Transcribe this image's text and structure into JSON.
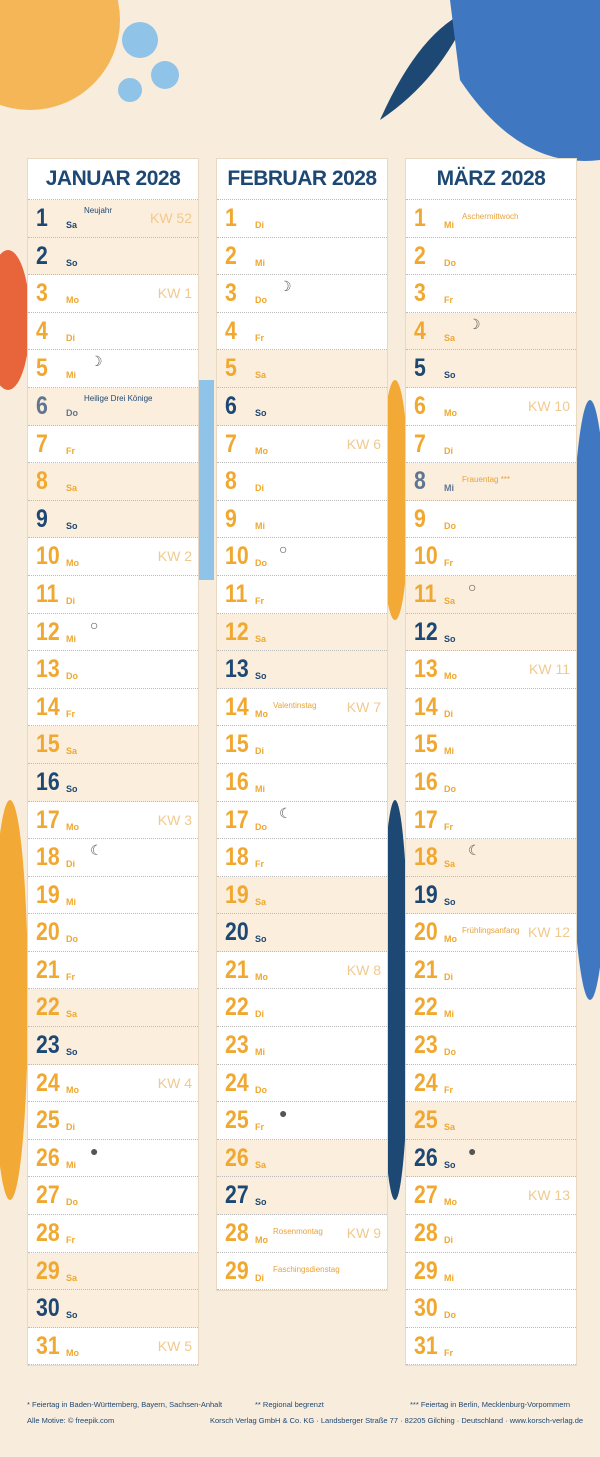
{
  "months": [
    {
      "title": "JANUAR 2028",
      "days": [
        {
          "day": 1,
          "weekday": "Sa",
          "note": "Neujahr",
          "kw": "KW 52",
          "color": "#1d4873"
        },
        {
          "day": 2,
          "weekday": "So"
        },
        {
          "day": 3,
          "weekday": "Mo",
          "kw": "KW 1"
        },
        {
          "day": 4,
          "weekday": "Di"
        },
        {
          "day": 5,
          "weekday": "Mi",
          "moon": "☽"
        },
        {
          "day": 6,
          "weekday": "Do",
          "note": "Heilige Drei Könige",
          "color": "#5f7590"
        },
        {
          "day": 7,
          "weekday": "Fr"
        },
        {
          "day": 8,
          "weekday": "Sa"
        },
        {
          "day": 9,
          "weekday": "So"
        },
        {
          "day": 10,
          "weekday": "Mo",
          "kw": "KW 2"
        },
        {
          "day": 11,
          "weekday": "Di"
        },
        {
          "day": 12,
          "weekday": "Mi",
          "moon": "○"
        },
        {
          "day": 13,
          "weekday": "Do"
        },
        {
          "day": 14,
          "weekday": "Fr"
        },
        {
          "day": 15,
          "weekday": "Sa"
        },
        {
          "day": 16,
          "weekday": "So"
        },
        {
          "day": 17,
          "weekday": "Mo",
          "kw": "KW 3"
        },
        {
          "day": 18,
          "weekday": "Di",
          "moon": "☾"
        },
        {
          "day": 19,
          "weekday": "Mi"
        },
        {
          "day": 20,
          "weekday": "Do"
        },
        {
          "day": 21,
          "weekday": "Fr"
        },
        {
          "day": 22,
          "weekday": "Sa"
        },
        {
          "day": 23,
          "weekday": "So"
        },
        {
          "day": 24,
          "weekday": "Mo",
          "kw": "KW 4"
        },
        {
          "day": 25,
          "weekday": "Di"
        },
        {
          "day": 26,
          "weekday": "Mi",
          "moon": "●"
        },
        {
          "day": 27,
          "weekday": "Do"
        },
        {
          "day": 28,
          "weekday": "Fr"
        },
        {
          "day": 29,
          "weekday": "Sa"
        },
        {
          "day": 30,
          "weekday": "So"
        },
        {
          "day": 31,
          "weekday": "Mo",
          "kw": "KW 5"
        }
      ]
    },
    {
      "title": "FEBRUAR 2028",
      "days": [
        {
          "day": 1,
          "weekday": "Di"
        },
        {
          "day": 2,
          "weekday": "Mi"
        },
        {
          "day": 3,
          "weekday": "Do",
          "moon": "☽"
        },
        {
          "day": 4,
          "weekday": "Fr"
        },
        {
          "day": 5,
          "weekday": "Sa"
        },
        {
          "day": 6,
          "weekday": "So"
        },
        {
          "day": 7,
          "weekday": "Mo",
          "kw": "KW 6"
        },
        {
          "day": 8,
          "weekday": "Di"
        },
        {
          "day": 9,
          "weekday": "Mi"
        },
        {
          "day": 10,
          "weekday": "Do",
          "moon": "○"
        },
        {
          "day": 11,
          "weekday": "Fr"
        },
        {
          "day": 12,
          "weekday": "Sa"
        },
        {
          "day": 13,
          "weekday": "So"
        },
        {
          "day": 14,
          "weekday": "Mo",
          "note": "Valentinstag",
          "kw": "KW 7"
        },
        {
          "day": 15,
          "weekday": "Di"
        },
        {
          "day": 16,
          "weekday": "Mi"
        },
        {
          "day": 17,
          "weekday": "Do",
          "moon": "☾"
        },
        {
          "day": 18,
          "weekday": "Fr"
        },
        {
          "day": 19,
          "weekday": "Sa"
        },
        {
          "day": 20,
          "weekday": "So"
        },
        {
          "day": 21,
          "weekday": "Mo",
          "kw": "KW 8"
        },
        {
          "day": 22,
          "weekday": "Di"
        },
        {
          "day": 23,
          "weekday": "Mi"
        },
        {
          "day": 24,
          "weekday": "Do"
        },
        {
          "day": 25,
          "weekday": "Fr",
          "moon": "●"
        },
        {
          "day": 26,
          "weekday": "Sa"
        },
        {
          "day": 27,
          "weekday": "So"
        },
        {
          "day": 28,
          "weekday": "Mo",
          "note": "Rosenmontag",
          "kw": "KW 9"
        },
        {
          "day": 29,
          "weekday": "Di",
          "note": "Faschingsdienstag"
        }
      ]
    },
    {
      "title": "MÄRZ 2028",
      "days": [
        {
          "day": 1,
          "weekday": "Mi",
          "note": "Aschermittwoch"
        },
        {
          "day": 2,
          "weekday": "Do"
        },
        {
          "day": 3,
          "weekday": "Fr"
        },
        {
          "day": 4,
          "weekday": "Sa",
          "moon": "☽"
        },
        {
          "day": 5,
          "weekday": "So"
        },
        {
          "day": 6,
          "weekday": "Mo",
          "kw": "KW 10"
        },
        {
          "day": 7,
          "weekday": "Di"
        },
        {
          "day": 8,
          "weekday": "Mi",
          "note": "Frauentag ***",
          "color": "#5f7590"
        },
        {
          "day": 9,
          "weekday": "Do"
        },
        {
          "day": 10,
          "weekday": "Fr"
        },
        {
          "day": 11,
          "weekday": "Sa",
          "moon": "○"
        },
        {
          "day": 12,
          "weekday": "So"
        },
        {
          "day": 13,
          "weekday": "Mo",
          "kw": "KW 11"
        },
        {
          "day": 14,
          "weekday": "Di"
        },
        {
          "day": 15,
          "weekday": "Mi"
        },
        {
          "day": 16,
          "weekday": "Do"
        },
        {
          "day": 17,
          "weekday": "Fr"
        },
        {
          "day": 18,
          "weekday": "Sa",
          "moon": "☾"
        },
        {
          "day": 19,
          "weekday": "So"
        },
        {
          "day": 20,
          "weekday": "Mo",
          "note": "Frühlingsanfang",
          "kw": "KW 12"
        },
        {
          "day": 21,
          "weekday": "Di"
        },
        {
          "day": 22,
          "weekday": "Mi"
        },
        {
          "day": 23,
          "weekday": "Do"
        },
        {
          "day": 24,
          "weekday": "Fr"
        },
        {
          "day": 25,
          "weekday": "Sa"
        },
        {
          "day": 26,
          "weekday": "So",
          "moon": "●"
        },
        {
          "day": 27,
          "weekday": "Mo",
          "kw": "KW 13"
        },
        {
          "day": 28,
          "weekday": "Di"
        },
        {
          "day": 29,
          "weekday": "Mi"
        },
        {
          "day": 30,
          "weekday": "Do"
        },
        {
          "day": 31,
          "weekday": "Fr"
        }
      ]
    }
  ],
  "footer": {
    "notes": [
      "* Feiertag in Baden-Württemberg, Bayern, Sachsen-Anhalt",
      "** Regional begrenzt",
      "*** Feiertag in Berlin, Mecklenburg-Vorpommern"
    ],
    "credit": "Alle Motive: © freepik.com",
    "publisher": "Korsch Verlag GmbH & Co. KG · Landsberger Straße 77 · 82205 Gilching · Deutschland · www.korsch-verlag.de"
  }
}
